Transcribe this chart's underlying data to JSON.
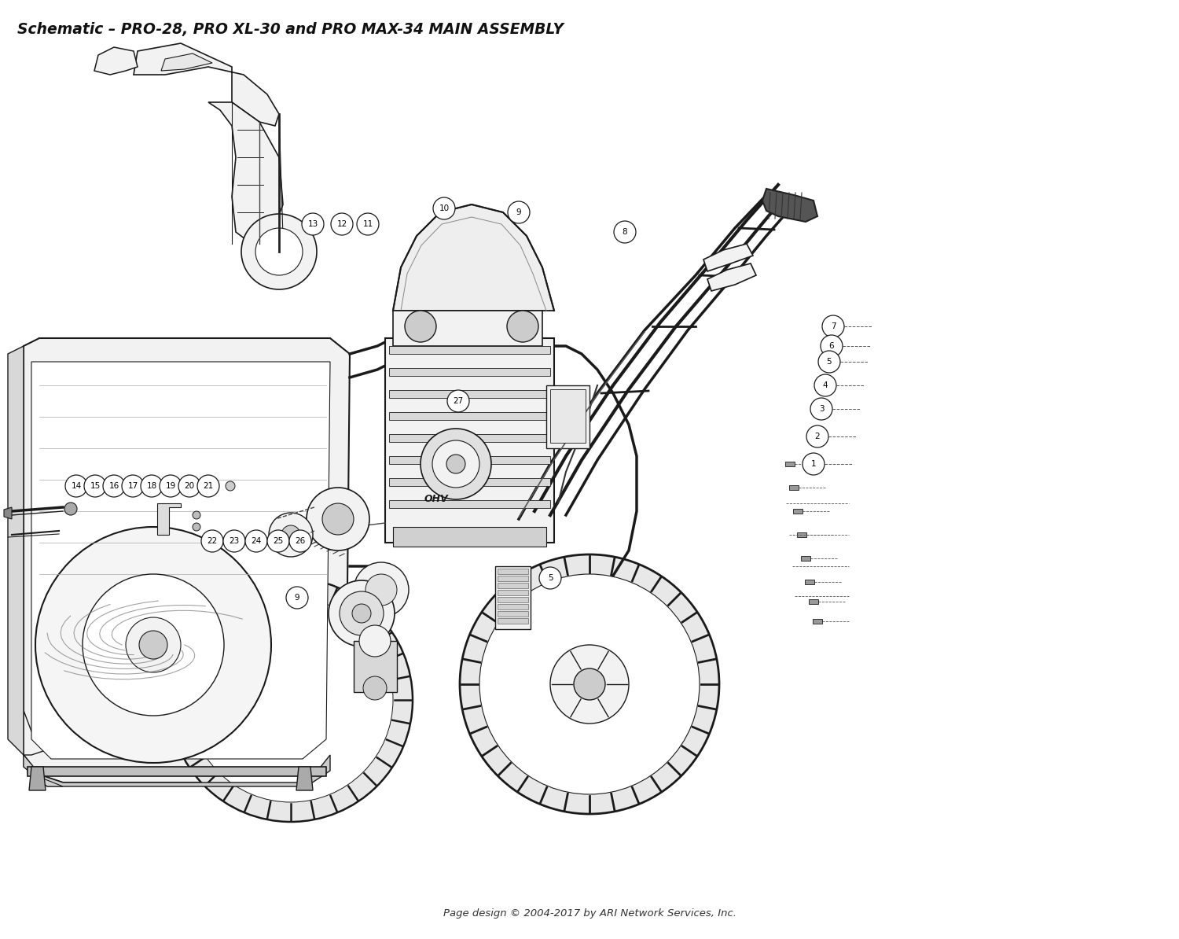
{
  "title": "Schematic – PRO-28, PRO XL-30 and PRO MAX-34 MAIN ASSEMBLY",
  "footer": "Page design © 2004-2017 by ARI Network Services, Inc.",
  "bg_color": "#ffffff",
  "title_fontsize": 13.5,
  "footer_fontsize": 9.5,
  "line_color": "#1a1a1a",
  "light_fill": "#f2f2f2",
  "mid_fill": "#e0e0e0",
  "dark_fill": "#999999"
}
